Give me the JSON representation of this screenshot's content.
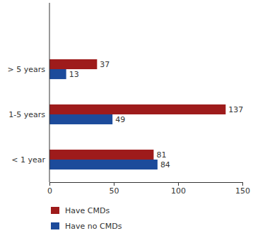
{
  "chart_data": {
    "type": "bar",
    "orientation": "horizontal",
    "data_labels": true,
    "legend": "bottom-left",
    "categories": [
      "< 1 year",
      "1-5 years",
      "> 5 years"
    ],
    "series": [
      {
        "name": "Have CMDs",
        "color": "#9e1b1b",
        "values": [
          81,
          137,
          37
        ]
      },
      {
        "name": "Have no CMDs",
        "color": "#1c4b9b",
        "values": [
          84,
          49,
          13
        ]
      }
    ],
    "xlim": [
      0,
      150
    ],
    "xticks": [
      0,
      50,
      100,
      150
    ]
  }
}
